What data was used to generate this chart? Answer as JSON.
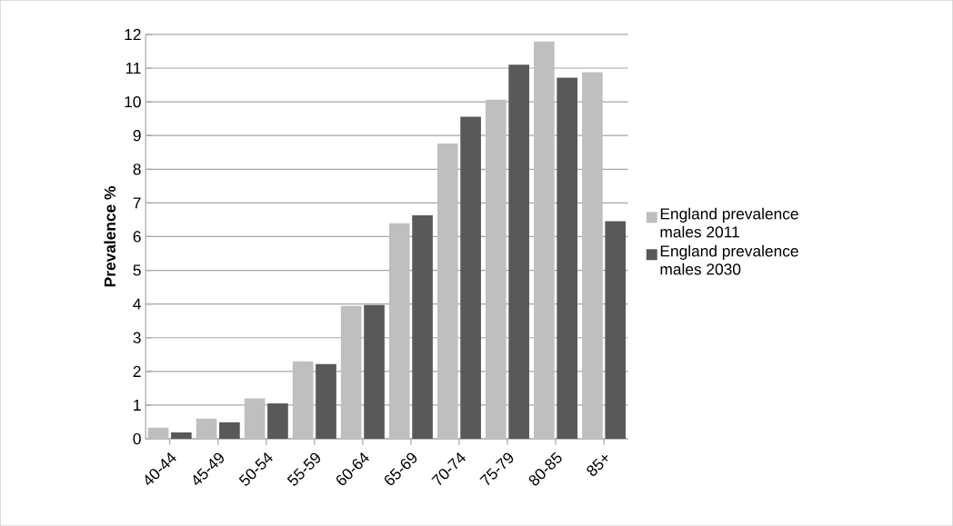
{
  "chart_data": {
    "type": "bar",
    "ylabel": "Prevalence %",
    "categories": [
      "40-44",
      "45-49",
      "50-54",
      "55-59",
      "60-64",
      "65-69",
      "70-74",
      "75-79",
      "80-85",
      "85+"
    ],
    "series": [
      {
        "name": "England prevalence males 2011",
        "color": "#bfbfbf",
        "values": [
          0.33,
          0.6,
          1.2,
          2.3,
          3.94,
          6.4,
          8.76,
          10.06,
          11.79,
          10.88
        ]
      },
      {
        "name": "England prevalence males 2030",
        "color": "#595959",
        "values": [
          0.19,
          0.49,
          1.05,
          2.22,
          3.97,
          6.63,
          9.56,
          11.1,
          10.72,
          6.46
        ]
      }
    ],
    "ylim": [
      0,
      12
    ],
    "yticks": [
      0,
      1,
      2,
      3,
      4,
      5,
      6,
      7,
      8,
      9,
      10,
      11,
      12
    ],
    "grid": "y",
    "legend": "right"
  }
}
